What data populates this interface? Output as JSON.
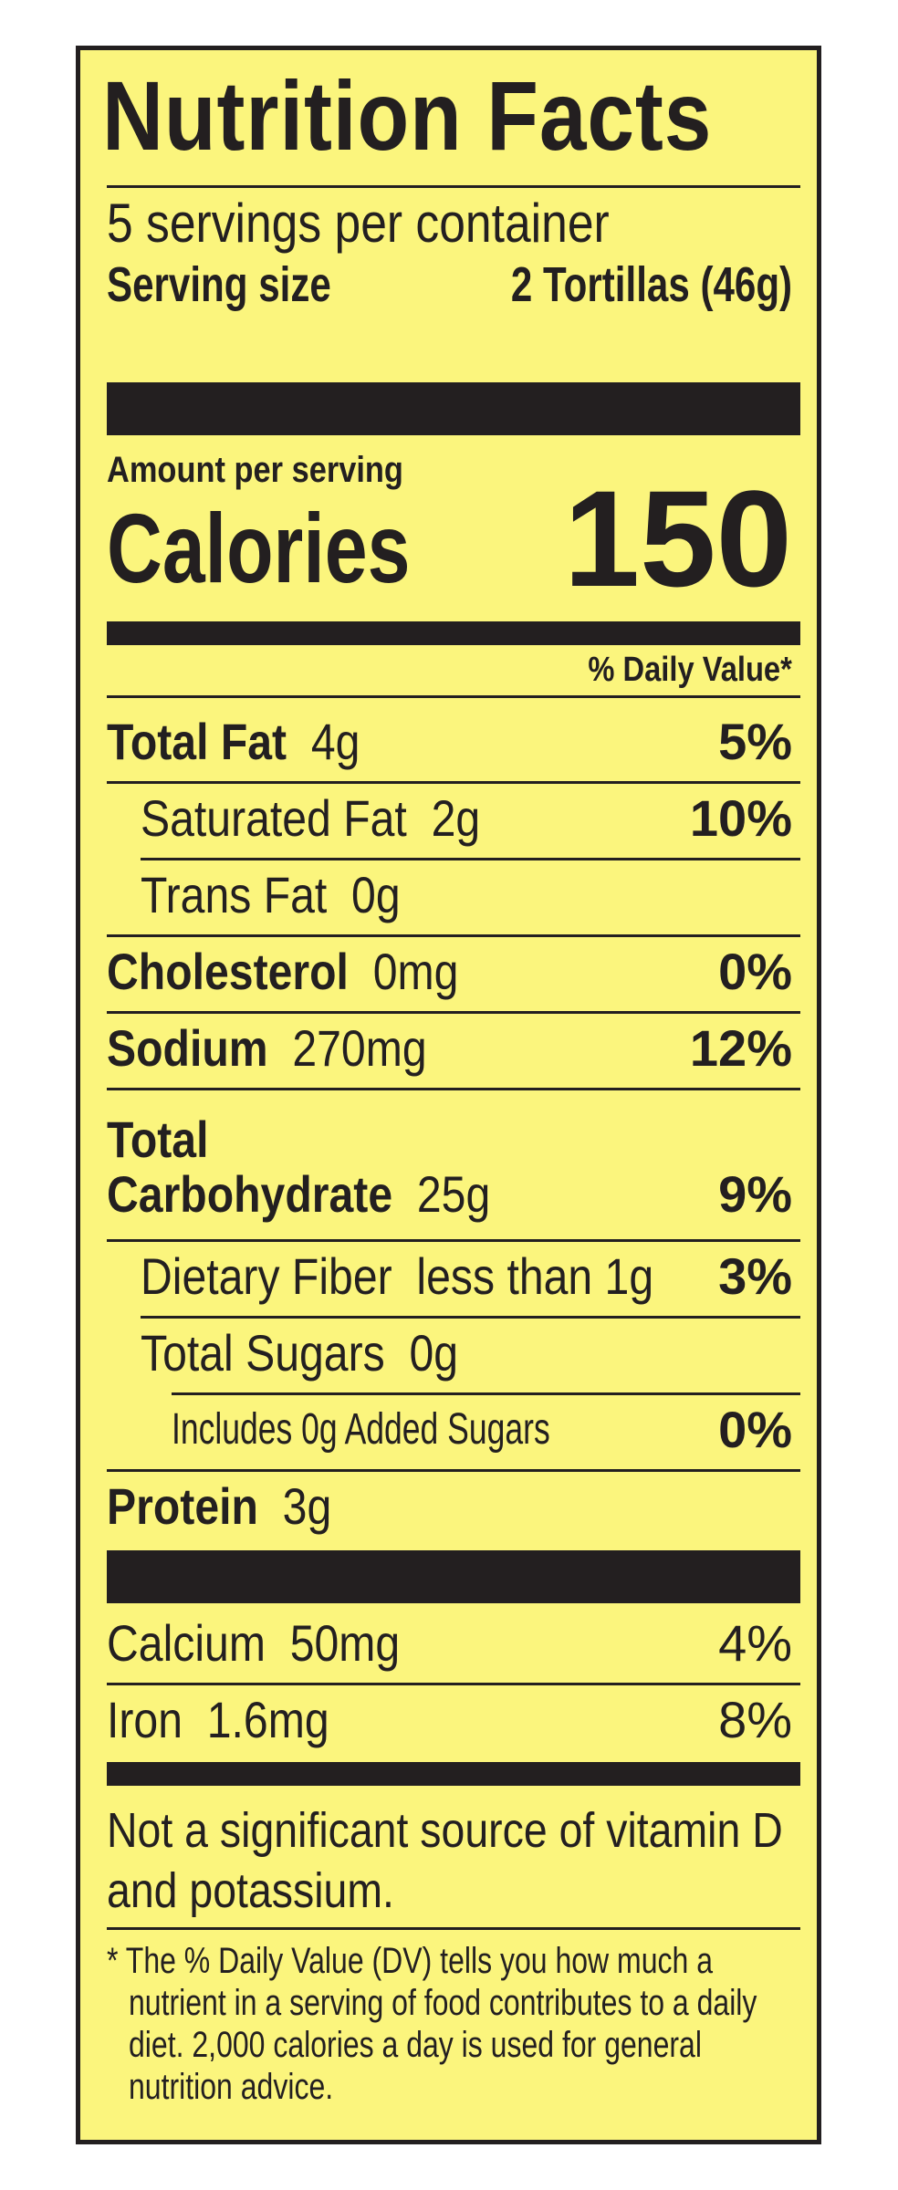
{
  "title": "Nutrition Facts",
  "servings_per_container": "5 servings per container",
  "serving_size": {
    "label": "Serving size",
    "value": "2 Tortillas (46g)"
  },
  "amount_per_serving": "Amount per serving",
  "calories": {
    "label": "Calories",
    "value": "150"
  },
  "daily_value_header": "% Daily Value*",
  "nutrients": [
    {
      "name": "Total Fat",
      "amount": "4g",
      "dv": "5%"
    },
    {
      "name": "Saturated Fat",
      "amount": "2g",
      "dv": "10%"
    },
    {
      "name": "Trans Fat",
      "amount": "0g",
      "dv": ""
    },
    {
      "name": "Cholesterol",
      "amount": "0mg",
      "dv": "0%"
    },
    {
      "name": "Sodium",
      "amount": "270mg",
      "dv": "12%"
    },
    {
      "name_line1": "Total",
      "name_line2": "Carbohydrate",
      "amount": "25g",
      "dv": "9%"
    },
    {
      "name": "Dietary Fiber",
      "amount": "less than 1g",
      "dv": "3%"
    },
    {
      "name": "Total Sugars",
      "amount": "0g",
      "dv": ""
    },
    {
      "name": "Includes 0g Added Sugars",
      "amount": "",
      "dv": "0%"
    },
    {
      "name": "Protein",
      "amount": "3g",
      "dv": ""
    }
  ],
  "minerals": [
    {
      "name": "Calcium",
      "amount": "50mg",
      "dv": "4%"
    },
    {
      "name": "Iron",
      "amount": "1.6mg",
      "dv": "8%"
    }
  ],
  "not_significant": {
    "line1": "Not a significant source of vitamin D",
    "line2": "and potassium."
  },
  "footnote": {
    "line1": "* The % Daily Value (DV) tells you how much a",
    "line2": "nutrient in a serving of food contributes to a daily",
    "line3": "diet. 2,000 calories a day is used for general",
    "line4": "nutrition advice."
  },
  "colors": {
    "background": "#fbf57d",
    "ink": "#231f20"
  }
}
